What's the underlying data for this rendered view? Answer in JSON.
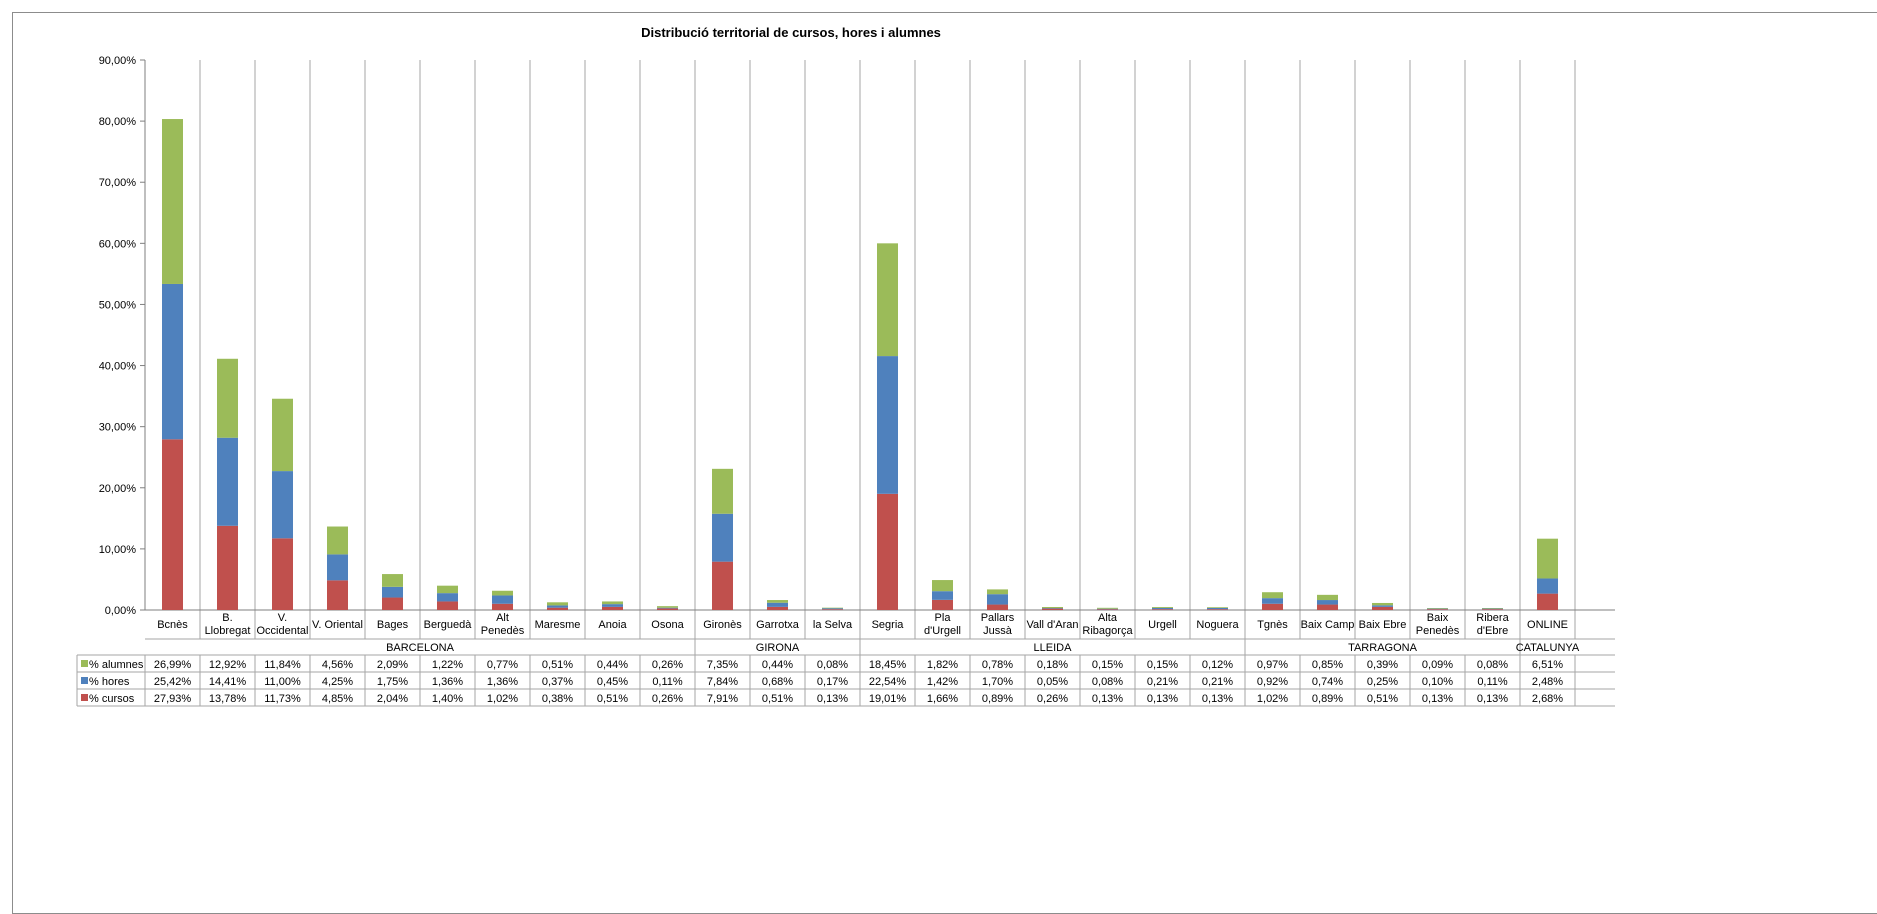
{
  "chart_data": {
    "type": "bar",
    "stacked": true,
    "title": "Distribució territorial de cursos, hores i alumnes",
    "ylim": [
      0,
      90
    ],
    "yticks": [
      "0,00%",
      "10,00%",
      "20,00%",
      "30,00%",
      "40,00%",
      "50,00%",
      "60,00%",
      "70,00%",
      "80,00%",
      "90,00%"
    ],
    "grid": "vertical category separators",
    "legend": "left of data table",
    "categories": [
      "Bcnès",
      "B. Llobregat",
      "V. Occidental",
      "V. Oriental",
      "Bages",
      "Berguedà",
      "Alt Penedès",
      "Maresme",
      "Anoia",
      "Osona",
      "Gironès",
      "Garrotxa",
      "la Selva",
      "Segria",
      "Pla d'Urgell",
      "Pallars Jussà",
      "Vall d'Aran",
      "Alta Ribagorça",
      "Urgell",
      "Noguera",
      "Tgnès",
      "Baix Camp",
      "Baix Ebre",
      "Baix Penedès",
      "Ribera d'Ebre",
      "ONLINE"
    ],
    "category_lines": [
      [
        "Bcnès"
      ],
      [
        "B.",
        "Llobregat"
      ],
      [
        "V.",
        "Occidental"
      ],
      [
        "V. Oriental"
      ],
      [
        "Bages"
      ],
      [
        "Berguedà"
      ],
      [
        "Alt",
        "Penedès"
      ],
      [
        "Maresme"
      ],
      [
        "Anoia"
      ],
      [
        "Osona"
      ],
      [
        "Gironès"
      ],
      [
        "Garrotxa"
      ],
      [
        "la Selva"
      ],
      [
        "Segria"
      ],
      [
        "Pla",
        "d'Urgell"
      ],
      [
        "Pallars",
        "Jussà"
      ],
      [
        "Vall d'Aran"
      ],
      [
        "Alta",
        "Ribagorça"
      ],
      [
        "Urgell"
      ],
      [
        "Noguera"
      ],
      [
        "Tgnès"
      ],
      [
        "Baix Camp"
      ],
      [
        "Baix Ebre"
      ],
      [
        "Baix",
        "Penedès"
      ],
      [
        "Ribera",
        "d'Ebre"
      ],
      [
        "ONLINE"
      ]
    ],
    "groups": [
      {
        "name": "BARCELONA",
        "start": 0,
        "end": 9
      },
      {
        "name": "GIRONA",
        "start": 10,
        "end": 12
      },
      {
        "name": "LLEIDA",
        "start": 13,
        "end": 19
      },
      {
        "name": "TARRAGONA",
        "start": 20,
        "end": 24
      },
      {
        "name": "CATALUNYA",
        "start": 25,
        "end": 25
      }
    ],
    "series": [
      {
        "name": "% cursos",
        "color": "#c0504d",
        "values": [
          27.93,
          13.78,
          11.73,
          4.85,
          2.04,
          1.4,
          1.02,
          0.38,
          0.51,
          0.26,
          7.91,
          0.51,
          0.13,
          19.01,
          1.66,
          0.89,
          0.26,
          0.13,
          0.13,
          0.13,
          1.02,
          0.89,
          0.51,
          0.13,
          0.13,
          2.68
        ],
        "labels": [
          "27,93%",
          "13,78%",
          "11,73%",
          "4,85%",
          "2,04%",
          "1,40%",
          "1,02%",
          "0,38%",
          "0,51%",
          "0,26%",
          "7,91%",
          "0,51%",
          "0,13%",
          "19,01%",
          "1,66%",
          "0,89%",
          "0,26%",
          "0,13%",
          "0,13%",
          "0,13%",
          "1,02%",
          "0,89%",
          "0,51%",
          "0,13%",
          "0,13%",
          "2,68%"
        ]
      },
      {
        "name": "% hores",
        "color": "#4f81bd",
        "values": [
          25.42,
          14.41,
          11.0,
          4.25,
          1.75,
          1.36,
          1.36,
          0.37,
          0.45,
          0.11,
          7.84,
          0.68,
          0.17,
          22.54,
          1.42,
          1.7,
          0.05,
          0.08,
          0.21,
          0.21,
          0.92,
          0.74,
          0.25,
          0.1,
          0.11,
          2.48
        ],
        "labels": [
          "25,42%",
          "14,41%",
          "11,00%",
          "4,25%",
          "1,75%",
          "1,36%",
          "1,36%",
          "0,37%",
          "0,45%",
          "0,11%",
          "7,84%",
          "0,68%",
          "0,17%",
          "22,54%",
          "1,42%",
          "1,70%",
          "0,05%",
          "0,08%",
          "0,21%",
          "0,21%",
          "0,92%",
          "0,74%",
          "0,25%",
          "0,10%",
          "0,11%",
          "2,48%"
        ]
      },
      {
        "name": "% alumnes",
        "color": "#9bbb59",
        "values": [
          26.99,
          12.92,
          11.84,
          4.56,
          2.09,
          1.22,
          0.77,
          0.51,
          0.44,
          0.26,
          7.35,
          0.44,
          0.08,
          18.45,
          1.82,
          0.78,
          0.18,
          0.15,
          0.15,
          0.12,
          0.97,
          0.85,
          0.39,
          0.09,
          0.08,
          6.51
        ],
        "labels": [
          "26,99%",
          "12,92%",
          "11,84%",
          "4,56%",
          "2,09%",
          "1,22%",
          "0,77%",
          "0,51%",
          "0,44%",
          "0,26%",
          "7,35%",
          "0,44%",
          "0,08%",
          "18,45%",
          "1,82%",
          "0,78%",
          "0,18%",
          "0,15%",
          "0,15%",
          "0,12%",
          "0,97%",
          "0,85%",
          "0,39%",
          "0,09%",
          "0,08%",
          "6,51%"
        ]
      }
    ]
  }
}
